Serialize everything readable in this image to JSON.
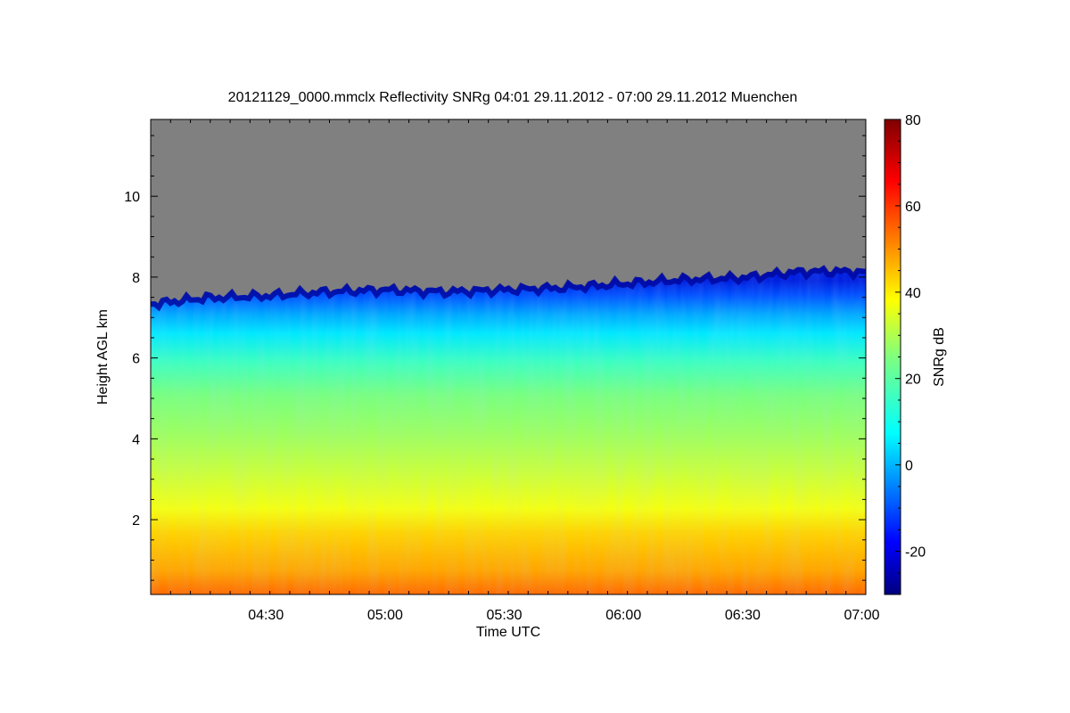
{
  "chart_data": {
    "type": "heatmap",
    "title": "20121129_0000.mmclx Reflectivity SNRg   04:01 29.11.2012 - 07:00 29.11.2012 Muenchen",
    "xlabel": "Time UTC",
    "ylabel": "Height AGL km",
    "xlim": [
      "04:01",
      "07:01"
    ],
    "ylim": [
      0.15,
      11.9
    ],
    "x_ticks": [
      {
        "value": "04:30",
        "label": "04:30"
      },
      {
        "value": "05:00",
        "label": "05:00"
      },
      {
        "value": "05:30",
        "label": "05:30"
      },
      {
        "value": "06:00",
        "label": "06:00"
      },
      {
        "value": "06:30",
        "label": "06:30"
      },
      {
        "value": "07:00",
        "label": "07:00"
      }
    ],
    "y_ticks": [
      {
        "value": 2,
        "label": "2"
      },
      {
        "value": 4,
        "label": "4"
      },
      {
        "value": 6,
        "label": "6"
      },
      {
        "value": 8,
        "label": "8"
      },
      {
        "value": 10,
        "label": "10"
      }
    ],
    "colorbar": {
      "label": "SNRg dB",
      "range": [
        -30,
        80
      ],
      "ticks": [
        {
          "value": -20,
          "label": "-20"
        },
        {
          "value": 0,
          "label": "0"
        },
        {
          "value": 20,
          "label": "20"
        },
        {
          "value": 40,
          "label": "40"
        },
        {
          "value": 60,
          "label": "60"
        },
        {
          "value": 80,
          "label": "80"
        }
      ],
      "colormap": "jet"
    },
    "no_echo_color": "#808080",
    "echo_top_km": [
      {
        "t": "04:01",
        "h": 7.4
      },
      {
        "t": "04:15",
        "h": 7.55
      },
      {
        "t": "04:30",
        "h": 7.6
      },
      {
        "t": "04:45",
        "h": 7.7
      },
      {
        "t": "05:00",
        "h": 7.75
      },
      {
        "t": "05:15",
        "h": 7.7
      },
      {
        "t": "05:30",
        "h": 7.75
      },
      {
        "t": "05:45",
        "h": 7.8
      },
      {
        "t": "06:00",
        "h": 7.9
      },
      {
        "t": "06:15",
        "h": 8.0
      },
      {
        "t": "06:30",
        "h": 8.05
      },
      {
        "t": "06:45",
        "h": 8.2
      },
      {
        "t": "07:00",
        "h": 8.2
      }
    ],
    "snr_profile_db": [
      {
        "h": 0.2,
        "db": 55
      },
      {
        "h": 0.5,
        "db": 52
      },
      {
        "h": 1.0,
        "db": 46
      },
      {
        "h": 1.5,
        "db": 42
      },
      {
        "h": 2.0,
        "db": 38
      },
      {
        "h": 2.5,
        "db": 32
      },
      {
        "h": 3.0,
        "db": 30
      },
      {
        "h": 4.0,
        "db": 25
      },
      {
        "h": 5.0,
        "db": 20
      },
      {
        "h": 6.0,
        "db": 10
      },
      {
        "h": 7.0,
        "db": 2
      },
      {
        "h": 7.6,
        "db": -10
      }
    ]
  }
}
